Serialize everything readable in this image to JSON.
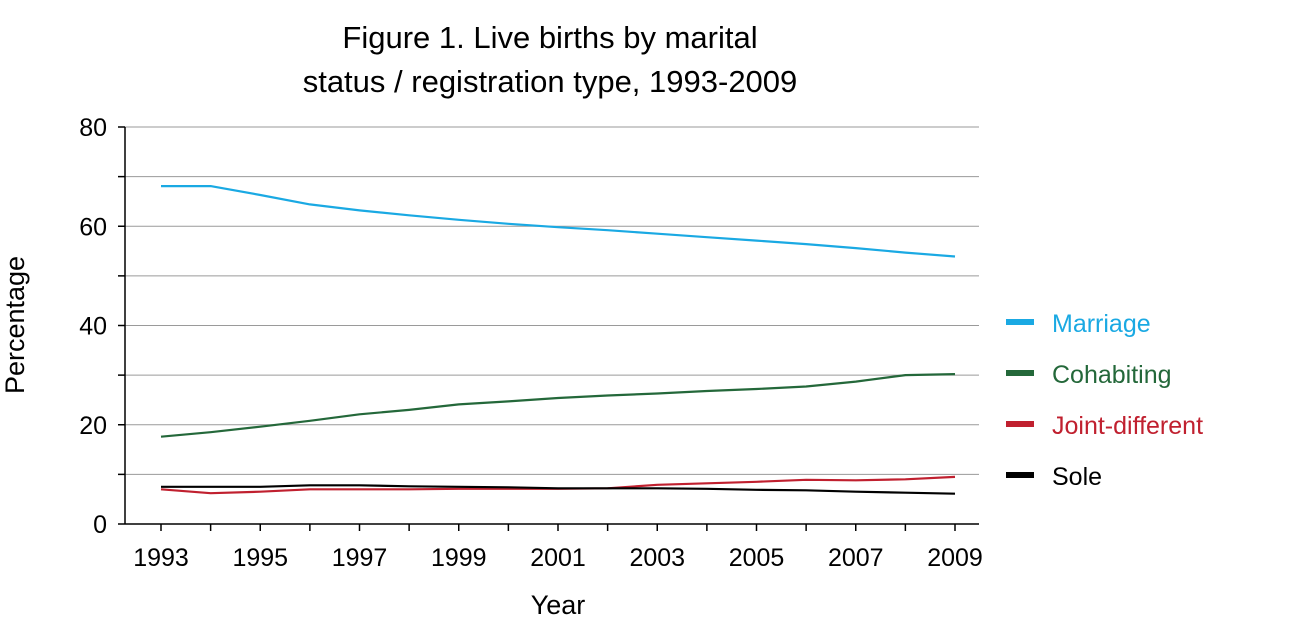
{
  "chart_data": {
    "type": "line",
    "title_line1": "Figure 1. Live births by marital",
    "title_line2": "status / registration type, 1993-2009",
    "xlabel": "Year",
    "ylabel": "Percentage",
    "x": [
      1993,
      1994,
      1995,
      1996,
      1997,
      1998,
      1999,
      2000,
      2001,
      2002,
      2003,
      2004,
      2005,
      2006,
      2007,
      2008,
      2009
    ],
    "x_tick_labels": [
      "1993",
      "1995",
      "1997",
      "1999",
      "2001",
      "2003",
      "2005",
      "2007",
      "2009"
    ],
    "y_tick_labels": [
      "0",
      "20",
      "40",
      "60",
      "80"
    ],
    "ylim": [
      0,
      80
    ],
    "y_minor_step": 10,
    "grid": true,
    "legend_position": "right",
    "series": [
      {
        "name": "Marriage",
        "color": "#1aa9e3",
        "values": [
          68.1,
          68.1,
          66.3,
          64.4,
          63.2,
          62.2,
          61.3,
          60.5,
          59.8,
          59.2,
          58.5,
          57.8,
          57.1,
          56.4,
          55.6,
          54.7,
          53.9
        ]
      },
      {
        "name": "Cohabiting",
        "color": "#24683a",
        "values": [
          17.6,
          18.5,
          19.6,
          20.8,
          22.1,
          23.0,
          24.1,
          24.7,
          25.4,
          25.9,
          26.3,
          26.8,
          27.2,
          27.7,
          28.7,
          30.0,
          30.2
        ]
      },
      {
        "name": "Joint-different",
        "color": "#c0202f",
        "values": [
          7.0,
          6.2,
          6.5,
          7.0,
          7.0,
          7.0,
          7.1,
          7.1,
          7.1,
          7.2,
          7.9,
          8.2,
          8.5,
          8.9,
          8.8,
          9.0,
          9.5
        ]
      },
      {
        "name": "Sole",
        "color": "#000000",
        "values": [
          7.5,
          7.5,
          7.5,
          7.8,
          7.8,
          7.6,
          7.5,
          7.4,
          7.2,
          7.2,
          7.2,
          7.1,
          6.9,
          6.8,
          6.5,
          6.3,
          6.1
        ]
      }
    ]
  }
}
